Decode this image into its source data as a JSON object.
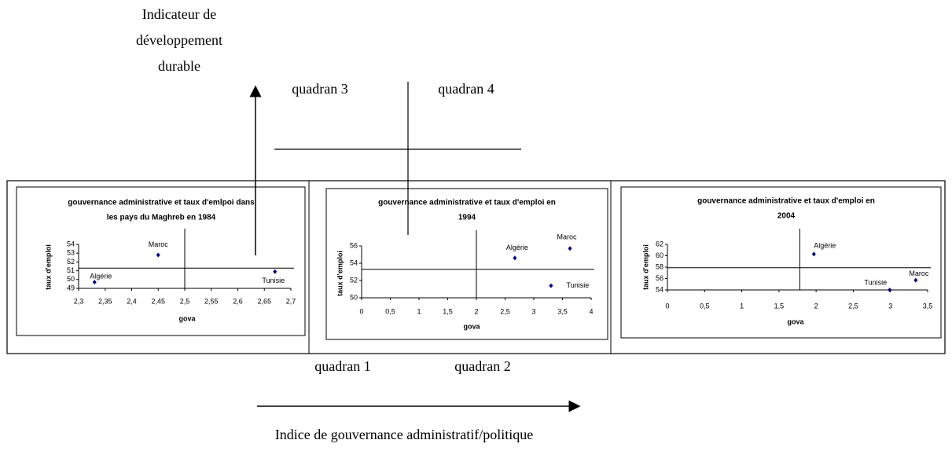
{
  "annotations": {
    "y_axis_title": [
      "Indicateur de",
      "développement",
      "durable"
    ],
    "quadrant_3": "quadran 3",
    "quadrant_4": "quadran 4",
    "quadrant_1": "quadran 1",
    "quadrant_2": "quadran 2",
    "x_axis_title": "Indice de gouvernance  administratif/politique"
  },
  "chart_data": [
    {
      "type": "scatter",
      "title": [
        "gouvernance administrative et taux d'emlpoi dans",
        "les pays du Maghreb en 1984"
      ],
      "xlabel": "gova",
      "ylabel": "taux d'emploi",
      "point_labels": [
        "Maroc",
        "Algérie",
        "Tunisie"
      ],
      "x": [
        2.45,
        2.33,
        2.67
      ],
      "values": [
        52.8,
        49.7,
        50.9
      ],
      "color": "#000080",
      "xlim": [
        2.3,
        2.7
      ],
      "xticks": [
        {
          "value": 2.3,
          "label": "2,3"
        },
        {
          "value": 2.35,
          "label": "2,35"
        },
        {
          "value": 2.4,
          "label": "2,4"
        },
        {
          "value": 2.45,
          "label": "2,45"
        },
        {
          "value": 2.5,
          "label": "2,5"
        },
        {
          "value": 2.55,
          "label": "2,55"
        },
        {
          "value": 2.6,
          "label": "2,6"
        },
        {
          "value": 2.65,
          "label": "2,65"
        },
        {
          "value": 2.7,
          "label": "2,7"
        }
      ],
      "ylim": [
        49,
        54
      ],
      "yticks": [
        49,
        50,
        51,
        52,
        53,
        54
      ],
      "vline": 2.5,
      "hline": 51.3
    },
    {
      "type": "scatter",
      "title": [
        "gouvernance administrative et taux d'emploi en",
        "1994"
      ],
      "xlabel": "gova",
      "ylabel": "taux d'emploi",
      "point_labels": [
        "Algérie",
        "Maroc",
        "Tunisie"
      ],
      "x": [
        2.67,
        3.63,
        3.3
      ],
      "values": [
        54.6,
        55.7,
        51.4
      ],
      "color": "#000080",
      "xlim": [
        0,
        4
      ],
      "xticks": [
        0,
        {
          "value": 0.5,
          "label": "0,5"
        },
        1,
        {
          "value": 1.5,
          "label": "1,5"
        },
        2,
        {
          "value": 2.5,
          "label": "2,5"
        },
        3,
        {
          "value": 3.5,
          "label": "3,5"
        },
        4
      ],
      "ylim": [
        50,
        56
      ],
      "yticks": [
        50,
        52,
        54,
        56
      ],
      "vline": 2,
      "hline": 53.3
    },
    {
      "type": "scatter",
      "title": [
        "gouvernance administrative et taux d'emploi en",
        "2004"
      ],
      "xlabel": "gova",
      "ylabel": "taux d'emploi",
      "point_labels": [
        "Algérie",
        "Tunisie",
        "Maroc"
      ],
      "x": [
        1.97,
        2.99,
        3.34
      ],
      "values": [
        60.3,
        54.0,
        55.7
      ],
      "color": "#000080",
      "xlim": [
        0,
        3.5
      ],
      "xticks": [
        0,
        {
          "value": 0.5,
          "label": "0,5"
        },
        1,
        {
          "value": 1.5,
          "label": "1,5"
        },
        2,
        {
          "value": 2.5,
          "label": "2,5"
        },
        3,
        {
          "value": 3.5,
          "label": "3,5"
        }
      ],
      "ylim": [
        54,
        62
      ],
      "yticks": [
        54,
        56,
        58,
        60,
        62
      ],
      "vline": 1.78,
      "hline": 57.9
    }
  ]
}
